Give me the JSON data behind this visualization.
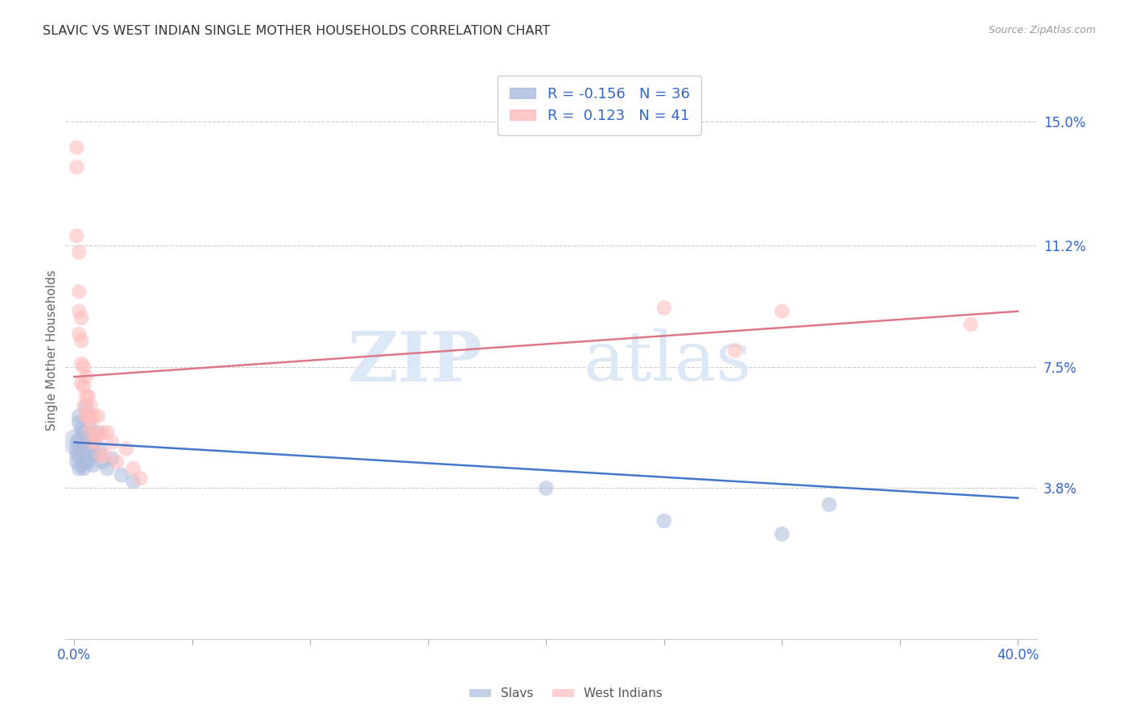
{
  "title": "SLAVIC VS WEST INDIAN SINGLE MOTHER HOUSEHOLDS CORRELATION CHART",
  "source": "Source: ZipAtlas.com",
  "ylabel": "Single Mother Households",
  "blue_label": "Slavs",
  "pink_label": "West Indians",
  "legend_blue_r": "-0.156",
  "legend_blue_n": "36",
  "legend_pink_r": "0.123",
  "legend_pink_n": "41",
  "blue_color": "#aabbdd",
  "pink_color": "#ffbbbb",
  "blue_line_color": "#4477cc",
  "pink_line_color": "#dd7788",
  "background_color": "#ffffff",
  "grid_color": "#cccccc",
  "title_color": "#333333",
  "axis_color": "#3366cc",
  "right_ytick_labels": [
    "",
    "3.8%",
    "7.5%",
    "11.2%",
    "15.0%"
  ],
  "right_yticks": [
    0.0,
    0.038,
    0.075,
    0.112,
    0.15
  ],
  "xlim": [
    -0.004,
    0.408
  ],
  "ylim": [
    -0.008,
    0.168
  ],
  "slavs_x": [
    0.001,
    0.001,
    0.001,
    0.001,
    0.002,
    0.002,
    0.002,
    0.002,
    0.002,
    0.003,
    0.003,
    0.003,
    0.004,
    0.004,
    0.004,
    0.005,
    0.005,
    0.006,
    0.006,
    0.006,
    0.007,
    0.007,
    0.008,
    0.008,
    0.009,
    0.01,
    0.011,
    0.012,
    0.014,
    0.016,
    0.02,
    0.025,
    0.2,
    0.25,
    0.3,
    0.32
  ],
  "slavs_y": [
    0.052,
    0.05,
    0.048,
    0.046,
    0.06,
    0.058,
    0.053,
    0.048,
    0.044,
    0.056,
    0.05,
    0.045,
    0.055,
    0.049,
    0.044,
    0.063,
    0.046,
    0.057,
    0.052,
    0.046,
    0.053,
    0.048,
    0.05,
    0.045,
    0.048,
    0.055,
    0.05,
    0.046,
    0.044,
    0.047,
    0.042,
    0.04,
    0.038,
    0.028,
    0.024,
    0.033
  ],
  "west_x": [
    0.001,
    0.001,
    0.001,
    0.002,
    0.002,
    0.002,
    0.002,
    0.003,
    0.003,
    0.003,
    0.003,
    0.004,
    0.004,
    0.004,
    0.005,
    0.005,
    0.005,
    0.006,
    0.006,
    0.006,
    0.007,
    0.007,
    0.007,
    0.008,
    0.008,
    0.009,
    0.01,
    0.01,
    0.011,
    0.012,
    0.013,
    0.014,
    0.016,
    0.018,
    0.022,
    0.025,
    0.028,
    0.25,
    0.28,
    0.3,
    0.38
  ],
  "west_y": [
    0.142,
    0.136,
    0.115,
    0.11,
    0.098,
    0.092,
    0.085,
    0.09,
    0.083,
    0.076,
    0.07,
    0.075,
    0.069,
    0.063,
    0.072,
    0.066,
    0.06,
    0.066,
    0.06,
    0.055,
    0.063,
    0.058,
    0.052,
    0.06,
    0.054,
    0.052,
    0.06,
    0.054,
    0.048,
    0.055,
    0.048,
    0.055,
    0.052,
    0.046,
    0.05,
    0.044,
    0.041,
    0.093,
    0.08,
    0.092,
    0.088
  ]
}
